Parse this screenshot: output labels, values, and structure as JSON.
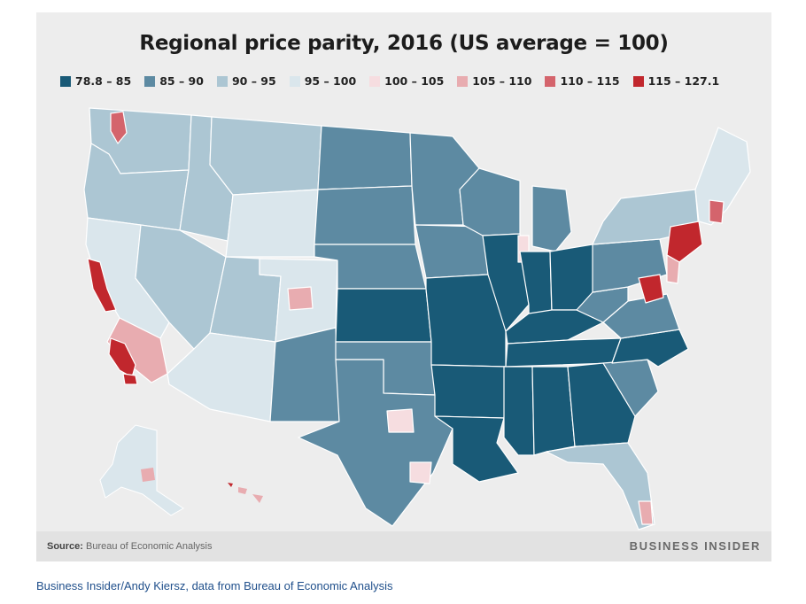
{
  "title": "Regional price parity, 2016 (US average = 100)",
  "legend": [
    {
      "label": "78.8 – 85",
      "color": "#195a77"
    },
    {
      "label": "85 – 90",
      "color": "#5d8aa2"
    },
    {
      "label": "90 – 95",
      "color": "#acc6d3"
    },
    {
      "label": "95 – 100",
      "color": "#dae6ec"
    },
    {
      "label": "100 – 105",
      "color": "#f6dde0"
    },
    {
      "label": "105 – 110",
      "color": "#e8acb0"
    },
    {
      "label": "110 – 115",
      "color": "#d4646c"
    },
    {
      "label": "115 – 127.1",
      "color": "#c1272d"
    }
  ],
  "footer": {
    "source_label": "Source:",
    "source_text": "Bureau of Economic Analysis",
    "brand": "BUSINESS INSIDER"
  },
  "caption": "Business Insider/Andy Kiersz, data from Bureau of Economic Analysis"
}
